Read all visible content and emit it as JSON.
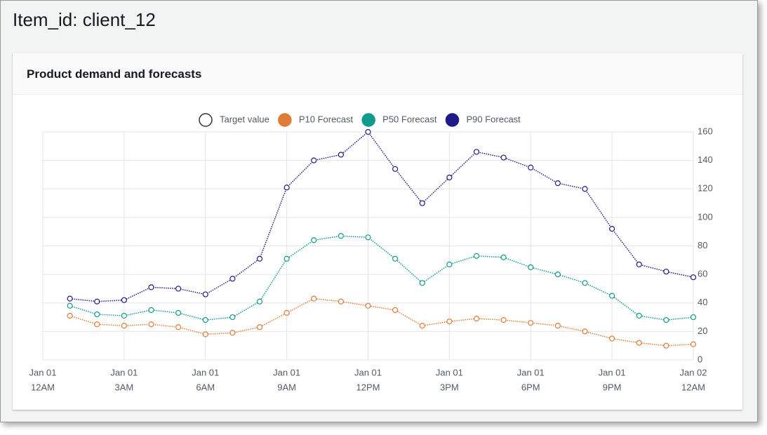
{
  "page": {
    "title": "Item_id: client_12"
  },
  "chart_data": {
    "type": "line",
    "title": "Product demand and forecasts",
    "x": [
      1,
      2,
      3,
      4,
      5,
      6,
      7,
      8,
      9,
      10,
      11,
      12,
      13,
      14,
      15,
      16,
      17,
      18,
      19,
      20,
      21,
      22,
      23,
      24
    ],
    "xlim": [
      0,
      24
    ],
    "xticks": [
      {
        "value": 0,
        "label": [
          "Jan 01",
          "12AM"
        ]
      },
      {
        "value": 3,
        "label": [
          "Jan 01",
          "3AM"
        ]
      },
      {
        "value": 6,
        "label": [
          "Jan 01",
          "6AM"
        ]
      },
      {
        "value": 9,
        "label": [
          "Jan 01",
          "9AM"
        ]
      },
      {
        "value": 12,
        "label": [
          "Jan 01",
          "12PM"
        ]
      },
      {
        "value": 15,
        "label": [
          "Jan 01",
          "3PM"
        ]
      },
      {
        "value": 18,
        "label": [
          "Jan 01",
          "6PM"
        ]
      },
      {
        "value": 21,
        "label": [
          "Jan 01",
          "9PM"
        ]
      },
      {
        "value": 24,
        "label": [
          "Jan 02",
          "12AM"
        ]
      }
    ],
    "ylim": [
      0,
      160
    ],
    "yticks": [
      0,
      20,
      40,
      60,
      80,
      100,
      120,
      140,
      160
    ],
    "grid": true,
    "series": [
      {
        "name": "Target value",
        "color": "#333333",
        "values": [
          null,
          null,
          null,
          null,
          null,
          null,
          null,
          null,
          null,
          null,
          null,
          null,
          null,
          null,
          null,
          null,
          null,
          null,
          null,
          null,
          null,
          null,
          null,
          null
        ]
      },
      {
        "name": "P10 Forecast",
        "color": "#e07b39",
        "values": [
          31,
          25,
          24,
          25,
          23,
          18,
          19,
          23,
          33,
          43,
          41,
          38,
          35,
          24,
          27,
          29,
          28,
          26,
          24,
          20,
          15,
          12,
          10,
          11
        ]
      },
      {
        "name": "P50 Forecast",
        "color": "#119b8c",
        "values": [
          38,
          32,
          31,
          35,
          33,
          28,
          30,
          41,
          71,
          84,
          87,
          86,
          71,
          54,
          67,
          73,
          72,
          65,
          60,
          54,
          45,
          31,
          28,
          30
        ]
      },
      {
        "name": "P90 Forecast",
        "color": "#1f1a8a",
        "values": [
          43,
          41,
          42,
          51,
          50,
          46,
          57,
          71,
          121,
          140,
          144,
          160,
          134,
          110,
          128,
          146,
          142,
          135,
          124,
          120,
          92,
          67,
          62,
          58
        ]
      }
    ]
  }
}
